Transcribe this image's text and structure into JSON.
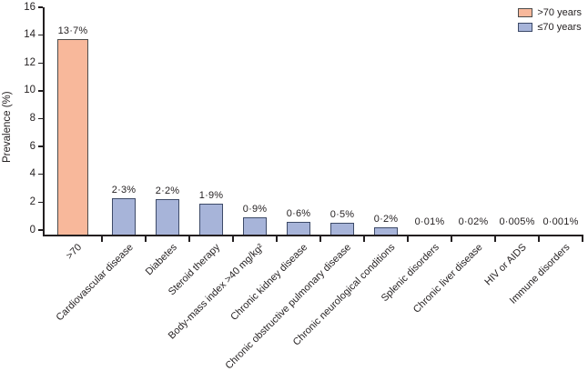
{
  "figure": {
    "y_axis_title": "Prevalence (%)",
    "colors": {
      "axis": "#231f20",
      "text": "#231f20",
      "over70_fill": "#f8b89b",
      "over70_border": "#4d4d4d",
      "under70_fill": "#a7b4d9",
      "under70_border": "#3d4a68"
    },
    "legend": {
      "items": [
        {
          "label": ">70 years",
          "fill": "#f8b89b",
          "border": "#4d4d4d"
        },
        {
          "label": "≤70 years",
          "fill": "#a7b4d9",
          "border": "#3d4a68"
        }
      ]
    }
  },
  "chart_data": {
    "type": "bar",
    "title": "",
    "xlabel": "",
    "ylabel": "Prevalence (%)",
    "ylim": [
      0,
      16
    ],
    "y_tick_step": 2,
    "y_tick_labels": [
      "0",
      "2",
      "4",
      "6",
      "8",
      "10",
      "12",
      "14",
      "16"
    ],
    "grid": false,
    "legend_position": "top-right",
    "legend_entries": [
      ">70 years",
      "≤70 years"
    ],
    "categories": [
      ">70",
      "Cardiovascular disease",
      "Diabetes",
      "Steroid therapy",
      "Body-mass index >40 mg/kg²",
      "Chronic kidney disease",
      "Chronic obstructive pulmonary disease",
      "Chronic neurological conditions",
      "Splenic disorders",
      "Chronic liver disease",
      "HIV or AIDS",
      "Immune disorders"
    ],
    "values": [
      13.7,
      2.3,
      2.2,
      1.9,
      0.9,
      0.6,
      0.5,
      0.2,
      0.01,
      0.02,
      0.005,
      0.001
    ],
    "value_labels": [
      "13·7%",
      "2·3%",
      "2·2%",
      "1·9%",
      "0·9%",
      "0·6%",
      "0·5%",
      "0·2%",
      "0·01%",
      "0·02%",
      "0·005%",
      "0·001%"
    ],
    "series_of_bar": [
      ">70 years",
      "≤70 years",
      "≤70 years",
      "≤70 years",
      "≤70 years",
      "≤70 years",
      "≤70 years",
      "≤70 years",
      "≤70 years",
      "≤70 years",
      "≤70 years",
      "≤70 years"
    ]
  }
}
